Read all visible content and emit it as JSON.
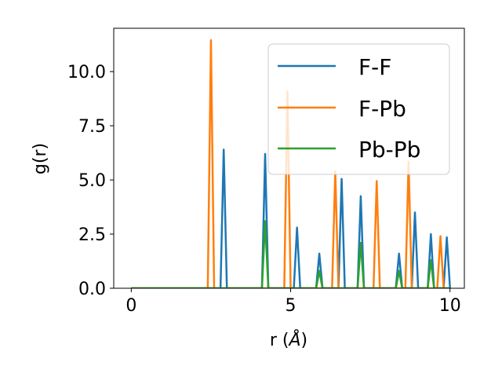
{
  "chart_data": {
    "type": "line",
    "title": "",
    "xlabel": "r (",
    "xlabel_unit": "Å",
    "xlabel_close": ")",
    "ylabel": "g(r)",
    "xlim": [
      -0.55,
      10.45
    ],
    "ylim": [
      0,
      12
    ],
    "xticks": [
      0,
      5,
      10
    ],
    "xtick_labels": [
      "0",
      "5",
      "10"
    ],
    "yticks": [
      0,
      2.5,
      5,
      7.5,
      10
    ],
    "ytick_labels": [
      "0.0",
      "2.5",
      "5.0",
      "7.5",
      "10.0"
    ],
    "grid": false,
    "legend_position": "top-right",
    "series": [
      {
        "name": "F-F",
        "color": "#1f77b4",
        "x": [
          0,
          2.8,
          2.9,
          3.0,
          4.1,
          4.2,
          4.3,
          5.1,
          5.2,
          5.3,
          5.8,
          5.9,
          6.0,
          6.5,
          6.6,
          6.7,
          7.1,
          7.2,
          7.3,
          8.3,
          8.4,
          8.5,
          8.8,
          8.9,
          9.0,
          9.3,
          9.4,
          9.5,
          9.8,
          9.9,
          10.0
        ],
        "y": [
          0,
          0,
          6.4,
          0,
          0,
          6.2,
          0,
          0,
          2.8,
          0,
          0,
          1.6,
          0,
          0,
          5.05,
          0,
          0,
          4.25,
          0,
          0,
          1.6,
          0,
          0,
          3.5,
          0,
          0,
          2.5,
          0,
          0,
          2.35,
          0
        ]
      },
      {
        "name": "F-Pb",
        "color": "#ff7f0e",
        "x": [
          0,
          2.4,
          2.5,
          2.6,
          4.8,
          4.9,
          5.0,
          6.3,
          6.4,
          6.5,
          7.6,
          7.7,
          7.8,
          8.6,
          8.7,
          8.8,
          9.6,
          9.7,
          9.8,
          10.0
        ],
        "y": [
          0,
          0,
          11.45,
          0,
          0,
          9.1,
          0,
          0,
          5.4,
          0,
          0,
          4.95,
          0,
          0,
          5.85,
          0,
          0,
          2.4,
          0,
          0
        ]
      },
      {
        "name": "Pb-Pb",
        "color": "#2ca02c",
        "x": [
          0,
          4.1,
          4.2,
          4.3,
          5.8,
          5.9,
          6.0,
          7.1,
          7.2,
          7.3,
          8.3,
          8.4,
          8.5,
          9.3,
          9.4,
          9.5,
          10.0
        ],
        "y": [
          0,
          0,
          3.1,
          0,
          0,
          0.8,
          0,
          0,
          2.1,
          0,
          0,
          0.8,
          0,
          0,
          1.3,
          0,
          0
        ]
      }
    ]
  }
}
